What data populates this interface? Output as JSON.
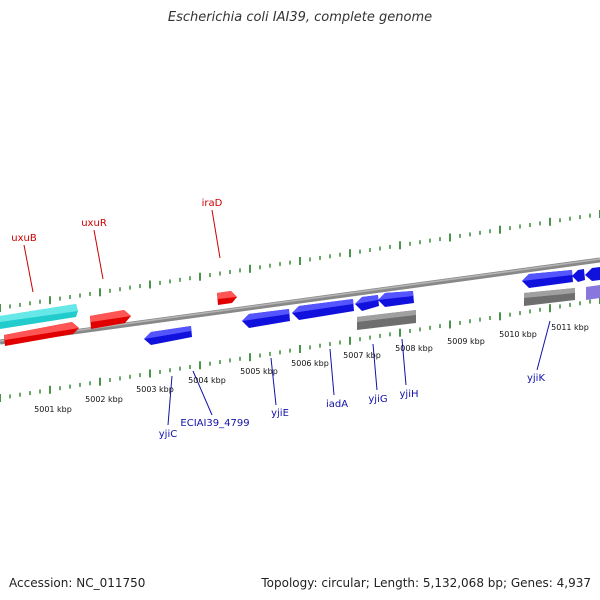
{
  "title": "Escherichia coli IAI39, complete genome",
  "footer": {
    "accession": "Accession: NC_011750",
    "summary": "Topology: circular; Length: 5,132,068 bp; Genes: 4,937"
  },
  "colors": {
    "backbone": "#8c8c8c",
    "tick": "#1a7a1a",
    "gene_forward_red": "#ee0000",
    "gene_forward_cyan": "#22cccc",
    "gene_reverse_blue": "#1111dd",
    "gene_grey": "#6e6e6e",
    "gene_purple": "#8877dd",
    "label_red": "#cc0000",
    "label_blue": "#1111aa"
  },
  "kbp_labels": [
    "5001 kbp",
    "5002 kbp",
    "5003 kbp",
    "5004 kbp",
    "5005 kbp",
    "5006 kbp",
    "5007 kbp",
    "5008 kbp",
    "5009 kbp",
    "5010 kbp",
    "5011 kbp"
  ],
  "genes_top": [
    {
      "name": "uxuB",
      "color": "red"
    },
    {
      "name": "uxuR",
      "color": "red"
    },
    {
      "name": "iraD",
      "color": "red"
    }
  ],
  "genes_bottom": [
    {
      "name": "yjiC",
      "color": "blue"
    },
    {
      "name": "ECIAI39_4799",
      "color": "blue"
    },
    {
      "name": "yjiE",
      "color": "blue"
    },
    {
      "name": "iadA",
      "color": "blue"
    },
    {
      "name": "yjiG",
      "color": "blue"
    },
    {
      "name": "yjiH",
      "color": "blue"
    },
    {
      "name": "yjiK",
      "color": "blue"
    }
  ]
}
